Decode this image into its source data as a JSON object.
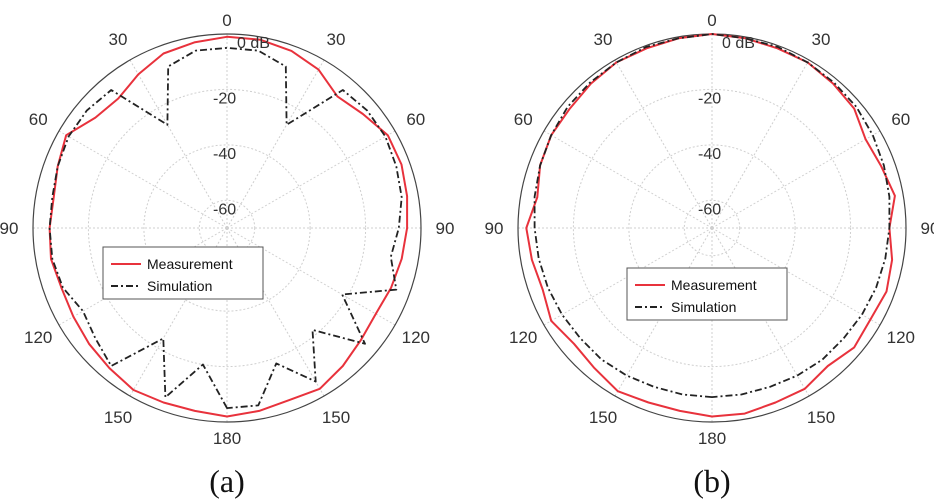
{
  "chart_data": [
    {
      "type": "polar",
      "caption": "(a)",
      "radial_unit_label": "0 dB",
      "r_ticks": [
        -20,
        -40,
        -60
      ],
      "r_range": [
        -70,
        0
      ],
      "angle_ticks_left": [
        "30",
        "60",
        "90",
        "120",
        "150"
      ],
      "angle_ticks_right": [
        "30",
        "60",
        "90",
        "120",
        "150"
      ],
      "angle_top": "0",
      "angle_bottom": "180",
      "legend": "center",
      "grid": true,
      "series": [
        {
          "name": "Measurement",
          "color": "#e8323c",
          "dash": "solid",
          "theta": [
            -180,
            -170,
            -160,
            -150,
            -140,
            -130,
            -120,
            -110,
            -100,
            -90,
            -80,
            -70,
            -60,
            -50,
            -40,
            -30,
            -20,
            -10,
            0,
            10,
            20,
            30,
            40,
            50,
            60,
            70,
            80,
            90,
            100,
            110,
            120,
            130,
            140,
            150,
            160,
            170,
            180
          ],
          "values": [
            -2,
            -3,
            -3,
            -2.5,
            -4,
            -5,
            -6,
            -6.5,
            -5.5,
            -6,
            -6.5,
            -5,
            -3,
            -8,
            -9,
            -6,
            -3,
            -2,
            -1,
            -1,
            -2,
            -4,
            -8,
            -6,
            -3,
            -3,
            -4,
            -5,
            -6,
            -7,
            -8,
            -7,
            -5,
            -3,
            -4,
            -3,
            -2
          ]
        },
        {
          "name": "Simulation",
          "color": "#222222",
          "dash": "dashdot",
          "theta": [
            -180,
            -170,
            -160,
            -150,
            -140,
            -130,
            -120,
            -110,
            -100,
            -90,
            -80,
            -70,
            -60,
            -50,
            -40,
            -30,
            -20,
            -10,
            0,
            10,
            20,
            30,
            40,
            50,
            60,
            70,
            80,
            90,
            100,
            110,
            120,
            130,
            140,
            150,
            160,
            170,
            180
          ],
          "values": [
            -5,
            -20,
            -5,
            -24,
            -5,
            -8,
            -10,
            -7,
            -6,
            -6,
            -6,
            -5,
            -4,
            -4,
            -5,
            -27,
            -8,
            -5,
            -5,
            -5,
            -8,
            -27,
            -5,
            -4,
            -4,
            -5,
            -6,
            -8,
            -10,
            -5,
            -22,
            -5,
            -22,
            -6,
            -18,
            -5,
            -5
          ]
        }
      ]
    },
    {
      "type": "polar",
      "caption": "(b)",
      "radial_unit_label": "0 dB",
      "r_ticks": [
        -20,
        -40,
        -60
      ],
      "r_range": [
        -70,
        0
      ],
      "angle_ticks_left": [
        "30",
        "60",
        "90",
        "120",
        "150"
      ],
      "angle_ticks_right": [
        "30",
        "60",
        "90",
        "120",
        "150"
      ],
      "angle_top": "0",
      "angle_bottom": "180",
      "legend": "center",
      "grid": true,
      "series": [
        {
          "name": "Measurement",
          "color": "#e8323c",
          "dash": "solid",
          "theta": [
            -180,
            -170,
            -160,
            -150,
            -140,
            -130,
            -120,
            -110,
            -100,
            -90,
            -80,
            -70,
            -60,
            -50,
            -40,
            -30,
            -20,
            -10,
            0,
            10,
            20,
            30,
            40,
            50,
            60,
            70,
            80,
            90,
            100,
            110,
            120,
            130,
            140,
            150,
            160,
            170,
            180
          ],
          "values": [
            -2,
            -3,
            -3,
            -2,
            -4,
            -5,
            -3,
            -5,
            -4,
            -3,
            -6,
            -4,
            -3,
            -3,
            -2,
            -1,
            -1,
            -0.5,
            0,
            -0.5,
            -1,
            -1,
            -2,
            -3,
            -6,
            -5,
            -3,
            -6,
            -4,
            -3,
            -4,
            -3,
            -5,
            -3,
            -3,
            -2,
            -2
          ]
        },
        {
          "name": "Simulation",
          "color": "#222222",
          "dash": "dashdot",
          "theta": [
            -180,
            -170,
            -160,
            -150,
            -140,
            -130,
            -120,
            -110,
            -100,
            -90,
            -80,
            -70,
            -60,
            -50,
            -40,
            -30,
            -20,
            -10,
            0,
            10,
            20,
            30,
            40,
            50,
            60,
            70,
            80,
            90,
            100,
            110,
            120,
            130,
            140,
            150,
            160,
            170,
            180
          ],
          "values": [
            -9,
            -9,
            -9,
            -8.5,
            -8,
            -8,
            -7.5,
            -7,
            -6.5,
            -6,
            -5,
            -4,
            -3,
            -2,
            -1.5,
            -1,
            -0.5,
            -0.5,
            0,
            -0.5,
            -0.5,
            -1,
            -1.5,
            -2,
            -3,
            -4,
            -5,
            -6,
            -6.5,
            -7,
            -7.5,
            -8,
            -8,
            -8.5,
            -9,
            -9,
            -9
          ]
        }
      ]
    }
  ]
}
